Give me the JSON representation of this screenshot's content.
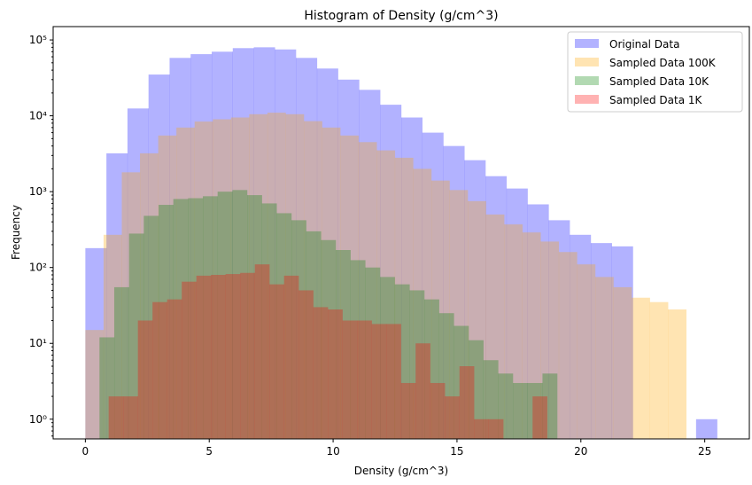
{
  "chart_data": {
    "type": "bar",
    "title": "Histogram of Density (g/cm^3)",
    "xlabel": "Density (g/cm^3)",
    "ylabel": "Frequency",
    "y_scale": "log",
    "xlim": [
      -1.3,
      26.8
    ],
    "ylim": [
      0.55,
      150000
    ],
    "x_ticks": [
      0,
      5,
      10,
      15,
      20,
      25
    ],
    "x_tick_labels": [
      "0",
      "5",
      "10",
      "15",
      "20",
      "25"
    ],
    "y_ticks": [
      1,
      10,
      100,
      1000,
      10000,
      100000
    ],
    "y_tick_labels": [
      "10⁰",
      "10¹",
      "10²",
      "10³",
      "10⁴",
      "10⁵"
    ],
    "legend_position": "top-right",
    "series": [
      {
        "name": "Original Data",
        "color": "#0000ff",
        "alpha": 0.3,
        "bin_start": 0,
        "bin_width": 0.85,
        "values": [
          180,
          3200,
          12500,
          35000,
          58000,
          65000,
          70000,
          78000,
          80000,
          75000,
          58000,
          42000,
          30000,
          22000,
          14000,
          9500,
          6000,
          4000,
          2600,
          1600,
          1100,
          680,
          420,
          270,
          210,
          190,
          0,
          0,
          0,
          1
        ]
      },
      {
        "name": "Sampled Data 100K",
        "color": "#ffa500",
        "alpha": 0.3,
        "bin_start": 0,
        "bin_width": 0.735,
        "values": [
          15,
          270,
          1800,
          3200,
          5500,
          7000,
          8400,
          9000,
          9500,
          10500,
          11000,
          10500,
          8500,
          7000,
          5500,
          4500,
          3500,
          2800,
          2000,
          1400,
          1050,
          750,
          500,
          370,
          290,
          220,
          160,
          110,
          75,
          55,
          40,
          35,
          28
        ]
      },
      {
        "name": "Sampled Data 10K",
        "color": "#008000",
        "alpha": 0.3,
        "bin_start": 0.57,
        "bin_width": 0.596,
        "values": [
          12,
          55,
          280,
          480,
          670,
          800,
          820,
          870,
          1000,
          1050,
          900,
          700,
          520,
          420,
          300,
          230,
          170,
          125,
          100,
          75,
          60,
          50,
          38,
          25,
          17,
          11,
          6,
          4,
          3,
          3,
          4
        ]
      },
      {
        "name": "Sampled Data 1K",
        "color": "#ff0000",
        "alpha": 0.3,
        "bin_start": 0.94,
        "bin_width": 0.59,
        "values": [
          2,
          2,
          20,
          35,
          38,
          65,
          78,
          80,
          82,
          85,
          110,
          60,
          78,
          50,
          30,
          28,
          20,
          20,
          18,
          18,
          3,
          10,
          3,
          2,
          5,
          1,
          1,
          0,
          0,
          2
        ]
      }
    ]
  }
}
